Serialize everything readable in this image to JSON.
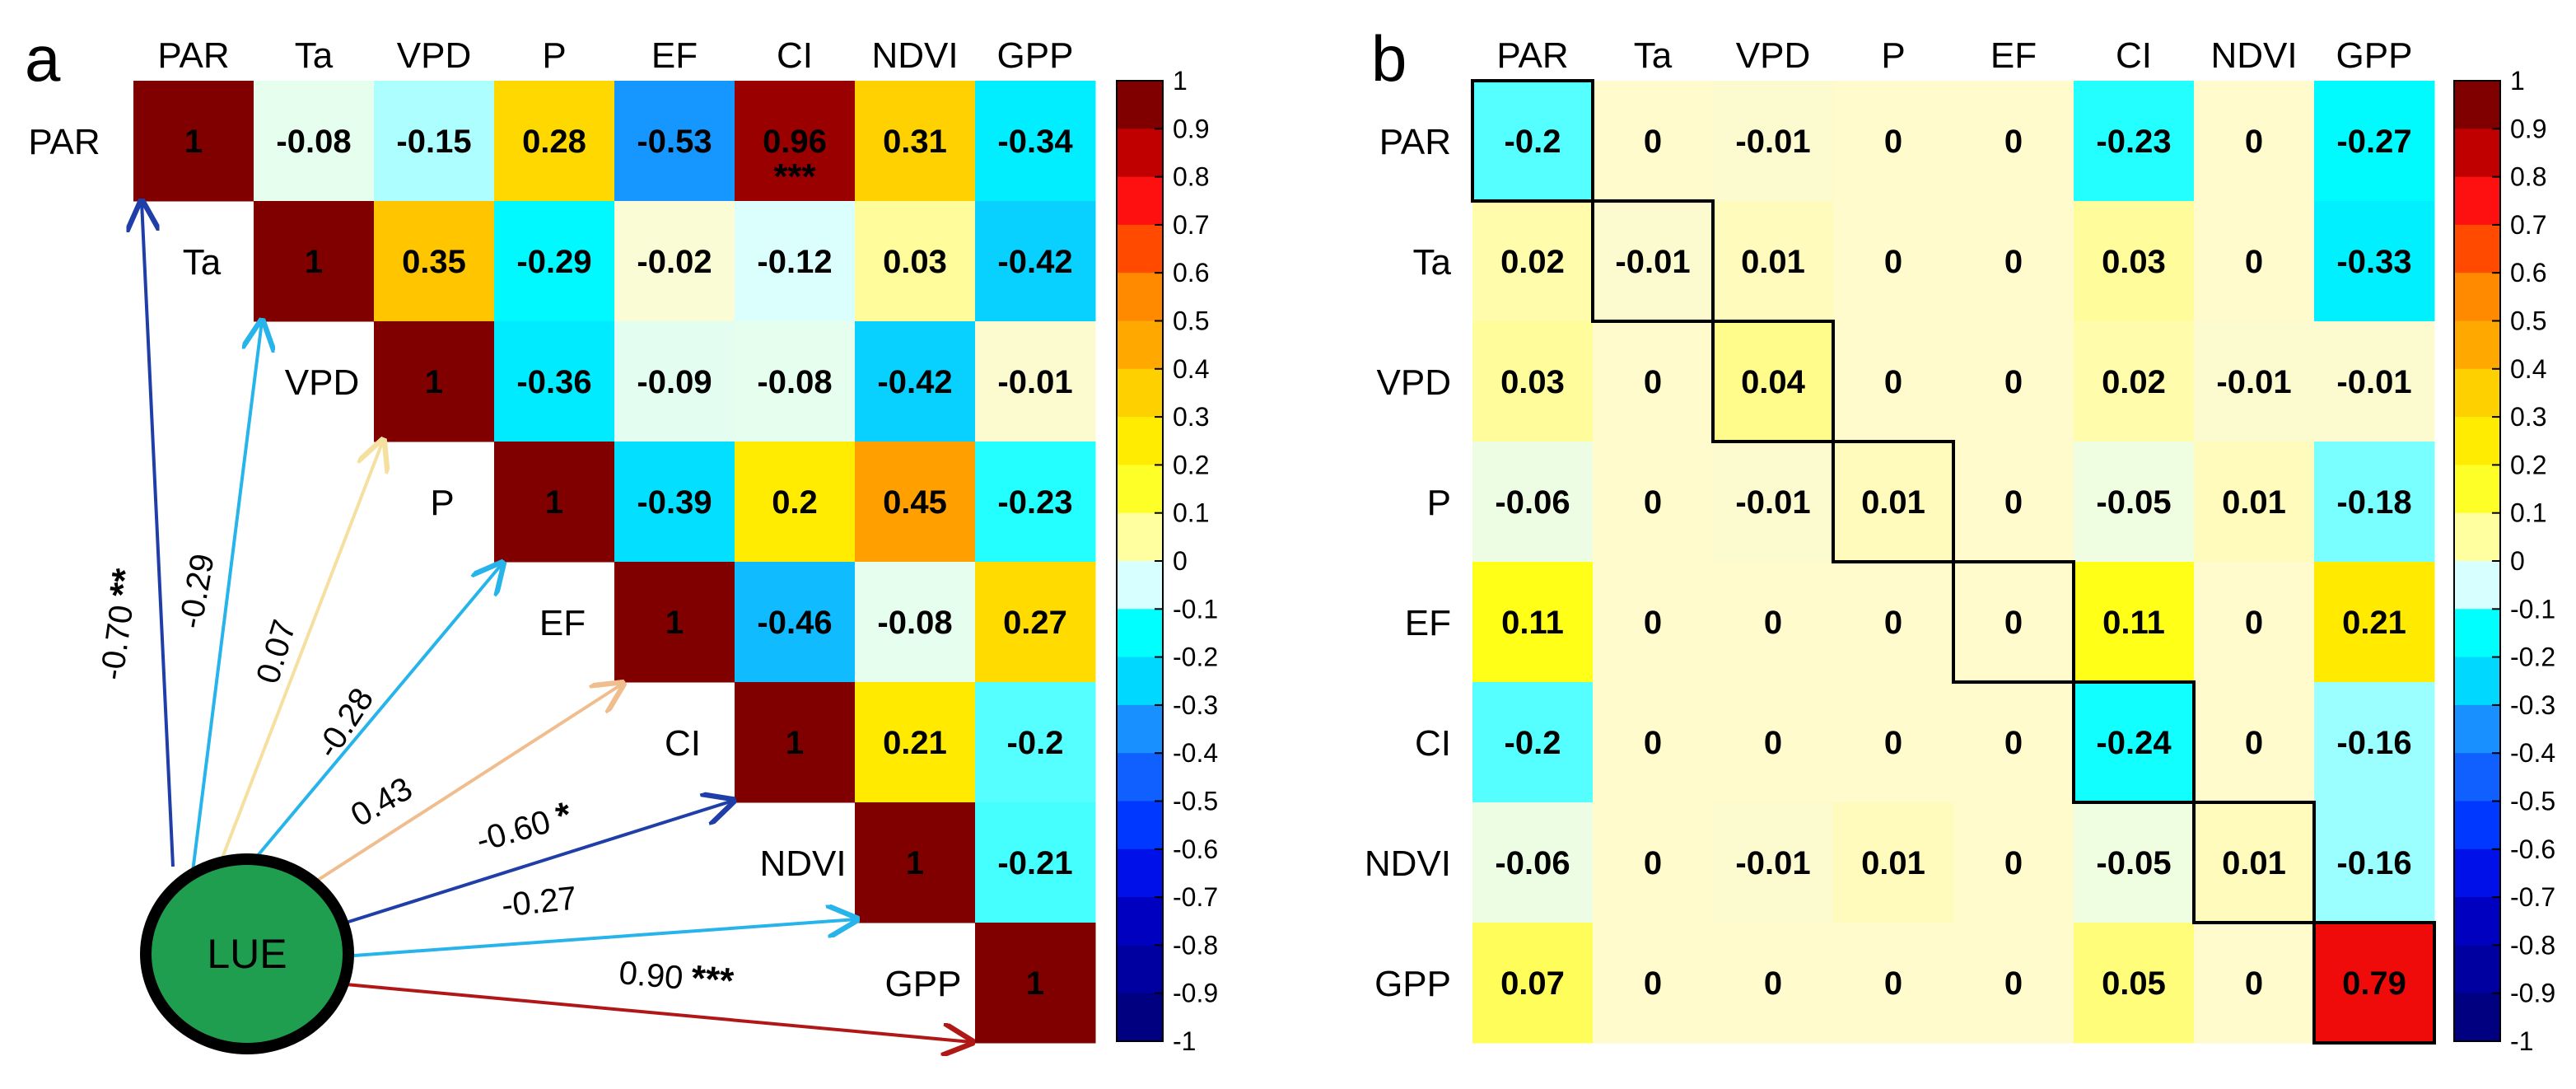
{
  "chart_data": [
    {
      "panel": "a",
      "type": "heatmap",
      "variables": [
        "PAR",
        "Ta",
        "VPD",
        "P",
        "EF",
        "CI",
        "NDVI",
        "GPP"
      ],
      "matrix_upper": [
        [
          "1",
          "-0.08",
          "-0.15",
          "0.28",
          "-0.53",
          "0.96",
          "0.31",
          "-0.34"
        ],
        [
          "",
          "1",
          "0.35",
          "-0.29",
          "-0.02",
          "-0.12",
          "0.03",
          "-0.42"
        ],
        [
          "",
          "",
          "1",
          "-0.36",
          "-0.09",
          "-0.08",
          "-0.42",
          "-0.01"
        ],
        [
          "",
          "",
          "",
          "1",
          "-0.39",
          "0.2",
          "0.45",
          "-0.23"
        ],
        [
          "",
          "",
          "",
          "",
          "1",
          "-0.46",
          "-0.08",
          "0.27"
        ],
        [
          "",
          "",
          "",
          "",
          "",
          "1",
          "0.21",
          "-0.2"
        ],
        [
          "",
          "",
          "",
          "",
          "",
          "",
          "1",
          "-0.21"
        ],
        [
          "",
          "",
          "",
          "",
          "",
          "",
          "",
          "1"
        ]
      ],
      "cell_annotations": [
        {
          "row": 0,
          "col": 5,
          "text": "***"
        }
      ],
      "center_node": "LUE",
      "paths": [
        {
          "target": "PAR",
          "coef": "-0.70",
          "sig": "**",
          "color": "#1f3ea8"
        },
        {
          "target": "Ta",
          "coef": "-0.29",
          "sig": "",
          "color": "#27b4ea"
        },
        {
          "target": "VPD",
          "coef": "0.07",
          "sig": "",
          "color": "#f5e0a0"
        },
        {
          "target": "P",
          "coef": "-0.28",
          "sig": "",
          "color": "#27b4ea"
        },
        {
          "target": "EF",
          "coef": "0.43",
          "sig": "",
          "color": "#f0be8e"
        },
        {
          "target": "CI",
          "coef": "-0.60",
          "sig": "*",
          "color": "#1f3ea8"
        },
        {
          "target": "NDVI",
          "coef": "-0.27",
          "sig": "",
          "color": "#27b4ea"
        },
        {
          "target": "GPP",
          "coef": "0.90",
          "sig": "***",
          "color": "#b01818"
        }
      ],
      "colorbar": {
        "range": [
          -1,
          1
        ],
        "ticks": [
          "1",
          "0.9",
          "0.8",
          "0.7",
          "0.6",
          "0.5",
          "0.4",
          "0.3",
          "0.2",
          "0.1",
          "0",
          "-0.1",
          "-0.2",
          "-0.3",
          "-0.4",
          "-0.5",
          "-0.6",
          "-0.7",
          "-0.8",
          "-0.9",
          "-1"
        ]
      }
    },
    {
      "panel": "b",
      "type": "heatmap",
      "variables": [
        "PAR",
        "Ta",
        "VPD",
        "P",
        "EF",
        "CI",
        "NDVI",
        "GPP"
      ],
      "matrix": [
        [
          "-0.2",
          "0",
          "-0.01",
          "0",
          "0",
          "-0.23",
          "0",
          "-0.27"
        ],
        [
          "0.02",
          "-0.01",
          "0.01",
          "0",
          "0",
          "0.03",
          "0",
          "-0.33"
        ],
        [
          "0.03",
          "0",
          "0.04",
          "0",
          "0",
          "0.02",
          "-0.01",
          "-0.01"
        ],
        [
          "-0.06",
          "0",
          "-0.01",
          "0.01",
          "0",
          "-0.05",
          "0.01",
          "-0.18"
        ],
        [
          "0.11",
          "0",
          "0",
          "0",
          "0",
          "0.11",
          "0",
          "0.21"
        ],
        [
          "-0.2",
          "0",
          "0",
          "0",
          "0",
          "-0.24",
          "0",
          "-0.16"
        ],
        [
          "-0.06",
          "0",
          "-0.01",
          "0.01",
          "0",
          "-0.05",
          "0.01",
          "-0.16"
        ],
        [
          "0.07",
          "0",
          "0",
          "0",
          "0",
          "0.05",
          "0",
          "0.79"
        ]
      ],
      "highlight": "diagonal",
      "colorbar": {
        "range": [
          -1,
          1
        ],
        "ticks": [
          "1",
          "0.9",
          "0.8",
          "0.7",
          "0.6",
          "0.5",
          "0.4",
          "0.3",
          "0.2",
          "0.1",
          "0",
          "-0.1",
          "-0.2",
          "-0.3",
          "-0.4",
          "-0.5",
          "-0.6",
          "-0.7",
          "-0.8",
          "-0.9",
          "-1"
        ]
      }
    }
  ],
  "colormap": [
    "#000080",
    "#0000b8",
    "#0018f0",
    "#1060ff",
    "#18a8ff",
    "#00e8ff",
    "#00ffff",
    "#d8ffff",
    "#fffbcc",
    "#ffff00",
    "#ffe000",
    "#ffc000",
    "#ff8a00",
    "#ff4a00",
    "#ff1010",
    "#d00000",
    "#800000"
  ],
  "colorbar_bins": [
    "#800000",
    "#c00000",
    "#ff1010",
    "#ff4a00",
    "#ff8a00",
    "#ffa800",
    "#ffd000",
    "#ffec00",
    "#ffff28",
    "#ffffa0",
    "#d8ffff",
    "#00ffff",
    "#00d8ff",
    "#1890ff",
    "#1060ff",
    "#0038ff",
    "#0010e8",
    "#0000c0",
    "#0000a0",
    "#000080"
  ],
  "colors": {
    "diag": "#800000",
    "lue_fill": "#1f9e50",
    "arrow_dark": "#1f3ea8",
    "arrow_light": "#27b4ea",
    "arrow_yellow": "#f5e0a0",
    "arrow_peach": "#f0be8e",
    "arrow_red": "#b01818"
  },
  "labels": {
    "panel_a": "a",
    "panel_b": "b",
    "lue": "LUE"
  }
}
